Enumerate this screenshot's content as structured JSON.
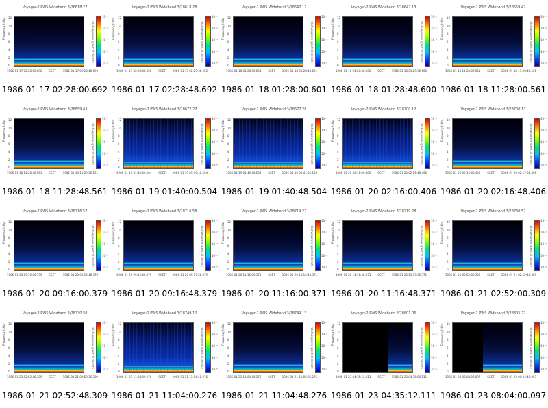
{
  "plot_labels": {
    "ylabel": "Frequency (kHz)",
    "cbar_label": "relative power spectral density",
    "scet": "SCET",
    "yticks": [
      "0",
      "2",
      "4",
      "6",
      "8",
      "10",
      "12"
    ],
    "cbar_ticks": [
      "10⁻¹",
      "10⁻²",
      "10⁻³",
      "10⁻⁴",
      "10⁻⁵"
    ]
  },
  "panels": [
    {
      "title": "Voyager-2 PWS Wideband 3/28618.27",
      "caption": "1986-01-17 02:28:00.692",
      "start": "1986-01-17 02:28:00.692",
      "end": "1986-01-17 02:28:48.692"
    },
    {
      "title": "Voyager-2 PWS Wideband 3/28618.28",
      "caption": "1986-01-17 02:28:48.692",
      "start": "1986-01-17 02:28:48.692",
      "end": "1986-01-17 02:29:36.692"
    },
    {
      "title": "Voyager-2 PWS Wideband 3/28647.12",
      "caption": "1986-01-18 01:28:00.601",
      "start": "1986-01-18 01:28:00.601",
      "end": "1986-01-18 01:28:48.601"
    },
    {
      "title": "Voyager-2 PWS Wideband 3/28647.13",
      "caption": "1986-01-18 01:28:48.600",
      "start": "1986-01-18 01:28:48.600",
      "end": "1986-01-18 01:29:36.600"
    },
    {
      "title": "Voyager-2 PWS Wideband 3/28659.42",
      "caption": "1986-01-18 11:28:00.561",
      "start": "1986-01-18 11:28:00.561",
      "end": "1986-01-18 11:28:48.561"
    },
    {
      "title": "Voyager-2 PWS Wideband 3/28659.43",
      "caption": "1986-01-18 11:28:48.561",
      "start": "1986-01-18 11:28:48.561",
      "end": "1986-01-18 11:29:36.561"
    },
    {
      "title": "Voyager-2 PWS Wideband 3/28677.27",
      "caption": "1986-01-19 01:40:00.504",
      "start": "1986-01-19 01:40:00.504",
      "end": "1986-01-19 01:40:48.504"
    },
    {
      "title": "Voyager-2 PWS Wideband 3/28677.28",
      "caption": "1986-01-19 01:40:48.504",
      "start": "1986-01-19 01:40:48.504",
      "end": "1986-01-19 01:41:36.504"
    },
    {
      "title": "Voyager-2 PWS Wideband 3/28700.12",
      "caption": "1986-01-20 02:16:00.406",
      "start": "1986-01-20 02:16:00.406",
      "end": "1986-01-20 02:16:48.406"
    },
    {
      "title": "Voyager-2 PWS Wideband 3/28700.13",
      "caption": "1986-01-20 02:16:48.406",
      "start": "1986-01-20 02:16:48.406",
      "end": "1986-01-20 02:17:36.406"
    },
    {
      "title": "Voyager-2 PWS Wideband 3/28716.57",
      "caption": "1986-01-20 09:16:00.379",
      "start": "1986-01-20 09:16:00.379",
      "end": "1986-01-20 09:16:48.379"
    },
    {
      "title": "Voyager-2 PWS Wideband 3/28716.58",
      "caption": "1986-01-20 09:16:48.379",
      "start": "1986-01-20 09:16:48.379",
      "end": "1986-01-20 09:17:36.379"
    },
    {
      "title": "Voyager-2 PWS Wideband 3/28719.27",
      "caption": "1986-01-20 11:16:00.371",
      "start": "1986-01-20 11:16:00.371",
      "end": "1986-01-20 11:16:48.371"
    },
    {
      "title": "Voyager-2 PWS Wideband 3/28719.28",
      "caption": "1986-01-20 11:16:48.371",
      "start": "1986-01-20 11:16:48.371",
      "end": "1986-01-20 11:17:36.371"
    },
    {
      "title": "Voyager-2 PWS Wideband 3/28730.57",
      "caption": "1986-01-21 02:52:00.309",
      "start": "1986-01-21 02:52:00.309",
      "end": "1986-01-21 02:52:48.309"
    },
    {
      "title": "Voyager-2 PWS Wideband 3/28730.58",
      "caption": "1986-01-21 02:52:48.309",
      "start": "1986-01-21 02:52:48.309",
      "end": "1986-01-21 02:53:36.309"
    },
    {
      "title": "Voyager-2 PWS Wideband 3/28749.12",
      "caption": "1986-01-21 11:04:00.276",
      "start": "1986-01-21 11:04:00.276",
      "end": "1986-01-21 11:04:48.276"
    },
    {
      "title": "Voyager-2 PWS Wideband 3/28749.13",
      "caption": "1986-01-21 11:04:48.276",
      "start": "1986-01-21 11:04:48.276",
      "end": "1986-01-21 11:05:36.276"
    },
    {
      "title": "Voyager-2 PWS Wideband 3/28801.06",
      "caption": "1986-01-23 04:35:12.111",
      "start": "1986-01-23 04:35:12.111",
      "end": "1986-01-23 04:36:00.111"
    },
    {
      "title": "Voyager-2 PWS Wideband 3/28805.27",
      "caption": "1986-01-23 08:04:00.097",
      "start": "1986-01-23 08:04:00.097",
      "end": "1986-01-23 08:04:48.097"
    }
  ]
}
